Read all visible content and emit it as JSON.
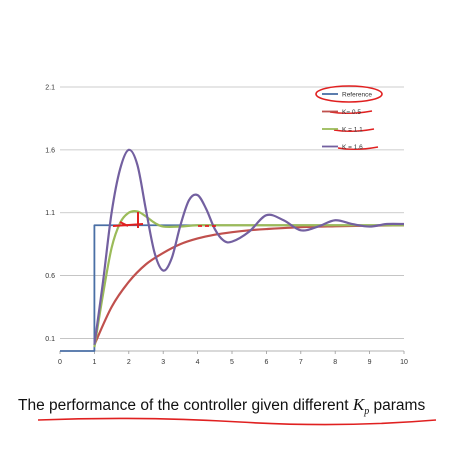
{
  "chart_data": {
    "type": "line",
    "xlim": [
      0,
      10
    ],
    "ylim": [
      0,
      2.1
    ],
    "x_ticks": [
      "0",
      "1",
      "2",
      "3",
      "4",
      "5",
      "6",
      "7",
      "8",
      "9",
      "10"
    ],
    "y_ticks": [
      "2.1",
      "1.6",
      "1.1",
      "0.6",
      "0.1"
    ],
    "grid": "horizontal",
    "legend_position": "top-right",
    "series": [
      {
        "name": "Reference",
        "color": "#4a6fa5",
        "x": [
          0,
          1,
          1,
          10
        ],
        "y": [
          0,
          0,
          1,
          1
        ]
      },
      {
        "name": "K= 0.5",
        "color": "#c0504d",
        "x": [
          1,
          1.5,
          2,
          2.5,
          3,
          3.5,
          4,
          4.5,
          5,
          5.5,
          6,
          7,
          8,
          9,
          10
        ],
        "y": [
          0.05,
          0.35,
          0.55,
          0.69,
          0.78,
          0.85,
          0.895,
          0.925,
          0.945,
          0.96,
          0.97,
          0.985,
          0.992,
          0.997,
          1.0
        ]
      },
      {
        "name": "K = 1.1",
        "color": "#9bbb59",
        "x": [
          1,
          1.25,
          1.5,
          1.75,
          2,
          2.25,
          2.5,
          2.75,
          3,
          3.5,
          4,
          5,
          6,
          7,
          8,
          9,
          10
        ],
        "y": [
          0.03,
          0.45,
          0.82,
          1.02,
          1.1,
          1.11,
          1.07,
          1.02,
          0.99,
          0.99,
          1.0,
          1.0,
          1.0,
          1.0,
          1.0,
          1.0,
          1.0
        ]
      },
      {
        "name": "K = 1.6",
        "color": "#7360a0",
        "x": [
          1,
          1.25,
          1.5,
          1.75,
          2,
          2.25,
          2.5,
          2.75,
          3,
          3.25,
          3.5,
          3.75,
          4,
          4.25,
          4.5,
          4.75,
          5,
          5.5,
          6,
          6.5,
          7,
          7.5,
          8,
          8.5,
          9,
          9.5,
          10
        ],
        "y": [
          0.05,
          0.55,
          1.1,
          1.45,
          1.6,
          1.48,
          1.12,
          0.78,
          0.64,
          0.74,
          1.0,
          1.2,
          1.24,
          1.13,
          0.97,
          0.88,
          0.87,
          0.95,
          1.08,
          1.04,
          0.96,
          0.99,
          1.04,
          1.01,
          0.99,
          1.01,
          1.01
        ]
      }
    ]
  },
  "caption": {
    "prefix": "The performance of the controller given different ",
    "symbol": "K",
    "subscript": "p",
    "suffix": " params"
  }
}
